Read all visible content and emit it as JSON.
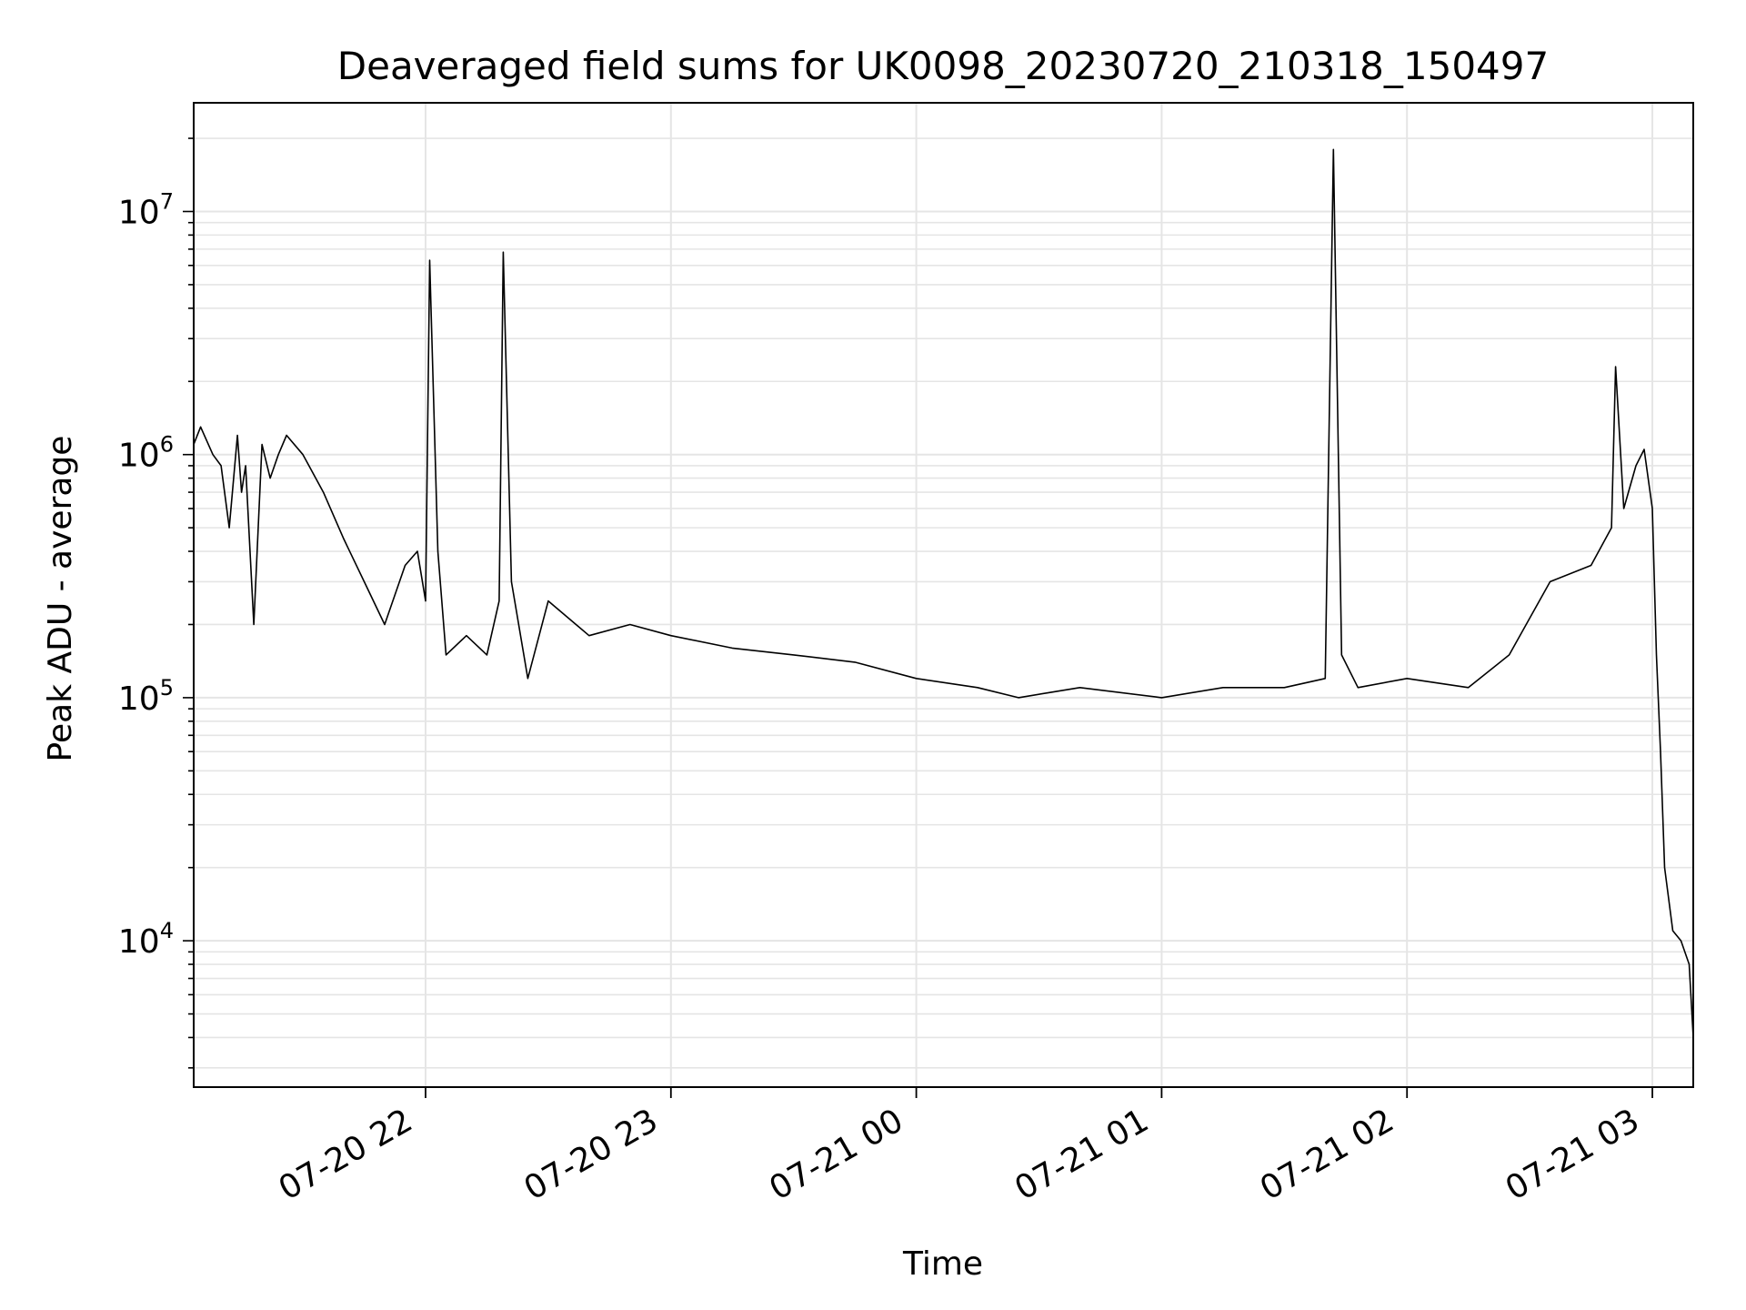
{
  "chart_data": {
    "type": "line",
    "title": "Deaveraged field sums for UK0098_20230720_210318_150497",
    "xlabel": "Time",
    "ylabel": "Peak ADU - average",
    "yscale": "log",
    "xlim": [
      "2023-07-20 21:03:18",
      "2023-07-21 03:10:00"
    ],
    "ylim": [
      2500,
      28000000
    ],
    "grid": true,
    "line_color": "#000000",
    "grid_color": "#e5e5e5",
    "x_ticks": [
      {
        "value": "2023-07-20 22:00",
        "label": "07-20 22"
      },
      {
        "value": "2023-07-20 23:00",
        "label": "07-20 23"
      },
      {
        "value": "2023-07-21 00:00",
        "label": "07-21 00"
      },
      {
        "value": "2023-07-21 01:00",
        "label": "07-21 01"
      },
      {
        "value": "2023-07-21 02:00",
        "label": "07-21 02"
      },
      {
        "value": "2023-07-21 03:00",
        "label": "07-21 03"
      }
    ],
    "y_ticks": [
      {
        "value": 10000,
        "base": "10",
        "exp": "4"
      },
      {
        "value": 100000,
        "base": "10",
        "exp": "5"
      },
      {
        "value": 1000000,
        "base": "10",
        "exp": "6"
      },
      {
        "value": 10000000,
        "base": "10",
        "exp": "7"
      }
    ],
    "series": [
      {
        "x": [
          "2023-07-20 21:03:18",
          "2023-07-20 21:05",
          "2023-07-20 21:08",
          "2023-07-20 21:10",
          "2023-07-20 21:12",
          "2023-07-20 21:14",
          "2023-07-20 21:15",
          "2023-07-20 21:16",
          "2023-07-20 21:18",
          "2023-07-20 21:20",
          "2023-07-20 21:22",
          "2023-07-20 21:24",
          "2023-07-20 21:26",
          "2023-07-20 21:30",
          "2023-07-20 21:35",
          "2023-07-20 21:40",
          "2023-07-20 21:45",
          "2023-07-20 21:50",
          "2023-07-20 21:55",
          "2023-07-20 21:58",
          "2023-07-20 22:00",
          "2023-07-20 22:01",
          "2023-07-20 22:03",
          "2023-07-20 22:05",
          "2023-07-20 22:10",
          "2023-07-20 22:15",
          "2023-07-20 22:18",
          "2023-07-20 22:19",
          "2023-07-20 22:21",
          "2023-07-20 22:25",
          "2023-07-20 22:30",
          "2023-07-20 22:40",
          "2023-07-20 22:50",
          "2023-07-20 23:00",
          "2023-07-20 23:15",
          "2023-07-20 23:30",
          "2023-07-20 23:45",
          "2023-07-21 00:00",
          "2023-07-21 00:15",
          "2023-07-21 00:25",
          "2023-07-21 00:40",
          "2023-07-21 01:00",
          "2023-07-21 01:15",
          "2023-07-21 01:30",
          "2023-07-21 01:40",
          "2023-07-21 01:42",
          "2023-07-21 01:44",
          "2023-07-21 01:48",
          "2023-07-21 02:00",
          "2023-07-21 02:15",
          "2023-07-21 02:25",
          "2023-07-21 02:35",
          "2023-07-21 02:45",
          "2023-07-21 02:50",
          "2023-07-21 02:51",
          "2023-07-21 02:53",
          "2023-07-21 02:56",
          "2023-07-21 02:58",
          "2023-07-21 03:00",
          "2023-07-21 03:01",
          "2023-07-21 03:02",
          "2023-07-21 03:03",
          "2023-07-21 03:05",
          "2023-07-21 03:07",
          "2023-07-21 03:09",
          "2023-07-21 03:10"
        ],
        "y": [
          1100000,
          1300000,
          1000000,
          900000,
          500000,
          1200000,
          700000,
          900000,
          200000,
          1100000,
          800000,
          1000000,
          1200000,
          1000000,
          700000,
          450000,
          300000,
          200000,
          350000,
          400000,
          250000,
          6300000,
          400000,
          150000,
          180000,
          150000,
          250000,
          6800000,
          300000,
          120000,
          250000,
          180000,
          200000,
          180000,
          160000,
          150000,
          140000,
          120000,
          110000,
          100000,
          110000,
          100000,
          110000,
          110000,
          120000,
          18000000,
          150000,
          110000,
          120000,
          110000,
          150000,
          300000,
          350000,
          500000,
          2300000,
          600000,
          900000,
          1050000,
          600000,
          150000,
          60000,
          20000,
          11000,
          10000,
          8000,
          4000
        ]
      }
    ]
  }
}
